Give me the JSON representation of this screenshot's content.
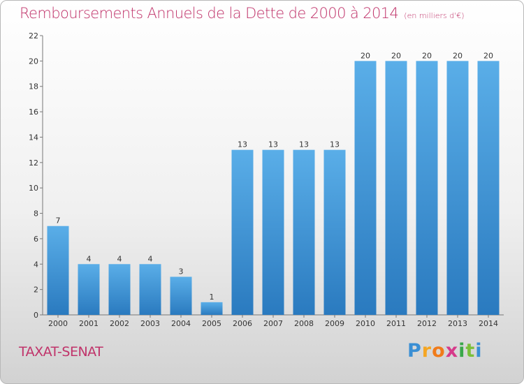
{
  "header": {
    "title": "Remboursements Annuels de la Dette de 2000 à 2014",
    "unit": "(en milliers d'€)"
  },
  "footer": {
    "town": "TAXAT-SENAT",
    "brand_letters": [
      "P",
      "r",
      "o",
      "x",
      "i",
      "t",
      "i"
    ],
    "brand_colors": [
      "#3a8fd4",
      "#f5a623",
      "#f07b1a",
      "#d63a8a",
      "#3aa84a",
      "#7bbf3a",
      "#3a8fd4"
    ]
  },
  "colors": {
    "bar_light": "#5aaee8",
    "bar_dark": "#2a7abf",
    "accent": "#c0336a"
  },
  "chart_data": {
    "type": "bar",
    "title": "Remboursements Annuels de la Dette de 2000 à 2014",
    "subtitle": "(en milliers d'€)",
    "xlabel": "",
    "ylabel": "",
    "categories": [
      "2000",
      "2001",
      "2002",
      "2003",
      "2004",
      "2005",
      "2006",
      "2007",
      "2008",
      "2009",
      "2010",
      "2011",
      "2012",
      "2013",
      "2014"
    ],
    "values": [
      7,
      4,
      4,
      4,
      3,
      1,
      13,
      13,
      13,
      13,
      20,
      20,
      20,
      20,
      20
    ],
    "ylim": [
      0,
      22
    ],
    "yticks": [
      "0",
      "2",
      "4",
      "6",
      "8",
      "10",
      "12",
      "14",
      "16",
      "18",
      "20",
      "22"
    ],
    "grid": false,
    "legend": "none"
  }
}
